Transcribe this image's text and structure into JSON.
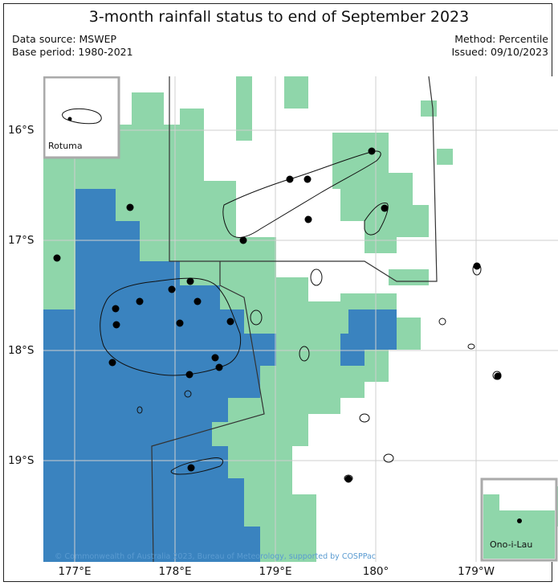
{
  "title": "3-month rainfall status to end of September 2023",
  "meta": {
    "data_source": "Data source: MSWEP",
    "base_period": "Base period: 1980-2021",
    "method": "Method: Percentile",
    "issued": "Issued: 09/10/2023"
  },
  "axes": {
    "lat_labels": [
      "16°S",
      "17°S",
      "18°S",
      "19°S"
    ],
    "lon_labels": [
      "177°E",
      "178°E",
      "179°E",
      "180°",
      "179°W"
    ]
  },
  "insets": {
    "rotuma": "Rotuma",
    "ono_i_lau": "Ono-i-Lau"
  },
  "copyright": "© Commonwealth of Australia 2023, Bureau of Meteorology, supported by COSPPac",
  "colors": {
    "below_average": "#3a83bf",
    "average": "#8fd6aa",
    "above_average": "#ffffff",
    "coastline": "#111111",
    "boundary": "#333333",
    "grid": "#cfcfcf"
  }
}
